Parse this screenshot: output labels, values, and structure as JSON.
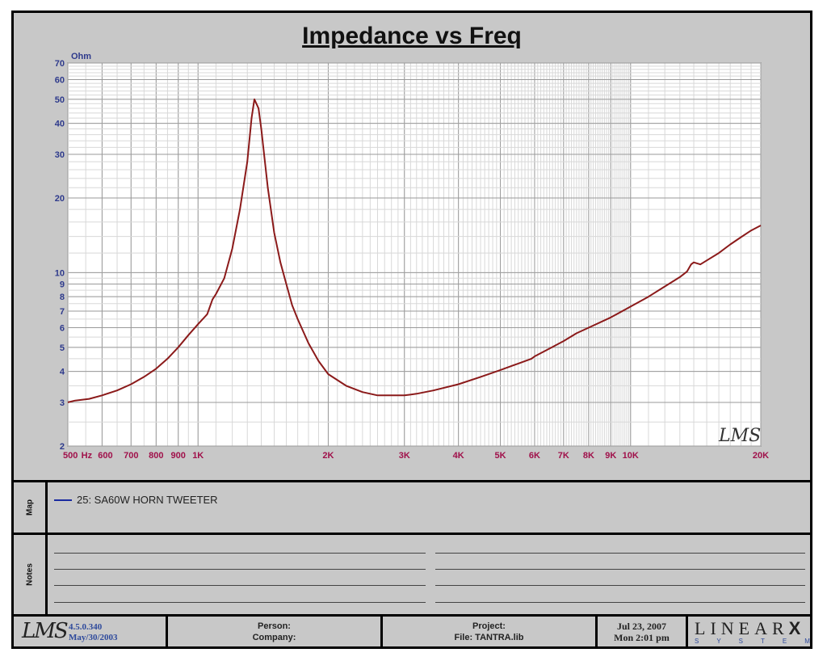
{
  "chart_data": {
    "type": "line",
    "title": "Impedance vs Freq",
    "ylabel": "Ohm",
    "xlabel": "Hz",
    "x_scale": "log",
    "y_scale": "log",
    "xlim": [
      500,
      20000
    ],
    "ylim": [
      2,
      70
    ],
    "grid": true,
    "x_ticks": [
      {
        "value": 500,
        "label": "500"
      },
      {
        "value": 600,
        "label": "600"
      },
      {
        "value": 700,
        "label": "700"
      },
      {
        "value": 800,
        "label": "800"
      },
      {
        "value": 900,
        "label": "900"
      },
      {
        "value": 1000,
        "label": "1K"
      },
      {
        "value": 2000,
        "label": "2K"
      },
      {
        "value": 3000,
        "label": "3K"
      },
      {
        "value": 4000,
        "label": "4K"
      },
      {
        "value": 5000,
        "label": "5K"
      },
      {
        "value": 6000,
        "label": "6K"
      },
      {
        "value": 7000,
        "label": "7K"
      },
      {
        "value": 8000,
        "label": "8K"
      },
      {
        "value": 9000,
        "label": "9K"
      },
      {
        "value": 10000,
        "label": "10K"
      },
      {
        "value": 20000,
        "label": "20K"
      }
    ],
    "y_ticks": [
      {
        "value": 2,
        "label": "2"
      },
      {
        "value": 3,
        "label": "3"
      },
      {
        "value": 4,
        "label": "4"
      },
      {
        "value": 5,
        "label": "5"
      },
      {
        "value": 6,
        "label": "6"
      },
      {
        "value": 7,
        "label": "7"
      },
      {
        "value": 8,
        "label": "8"
      },
      {
        "value": 9,
        "label": "9"
      },
      {
        "value": 10,
        "label": "10"
      },
      {
        "value": 20,
        "label": "20"
      },
      {
        "value": 30,
        "label": "30"
      },
      {
        "value": 40,
        "label": "40"
      },
      {
        "value": 50,
        "label": "50"
      },
      {
        "value": 60,
        "label": "60"
      },
      {
        "value": 70,
        "label": "70"
      }
    ],
    "series": [
      {
        "name": "25: SA60W HORN TWEETER",
        "color": "#8b1a1a",
        "x": [
          500,
          520,
          560,
          600,
          650,
          700,
          750,
          800,
          850,
          900,
          950,
          1000,
          1050,
          1080,
          1100,
          1150,
          1200,
          1250,
          1300,
          1330,
          1350,
          1380,
          1400,
          1450,
          1500,
          1550,
          1600,
          1650,
          1700,
          1800,
          1900,
          2000,
          2200,
          2400,
          2600,
          2800,
          3000,
          3200,
          3500,
          4000,
          4500,
          5000,
          5500,
          5900,
          6000,
          6500,
          7000,
          7500,
          8000,
          9000,
          10000,
          11000,
          12000,
          13000,
          13500,
          13800,
          14000,
          14500,
          15000,
          16000,
          17000,
          18000,
          19000,
          20000
        ],
        "y": [
          3.0,
          3.05,
          3.1,
          3.2,
          3.35,
          3.55,
          3.8,
          4.1,
          4.5,
          5.0,
          5.6,
          6.2,
          6.8,
          7.8,
          8.2,
          9.5,
          12.5,
          18.0,
          28.0,
          42.0,
          50.0,
          46.0,
          38.0,
          22.0,
          14.5,
          11.0,
          9.0,
          7.4,
          6.5,
          5.2,
          4.4,
          3.9,
          3.5,
          3.3,
          3.2,
          3.2,
          3.2,
          3.25,
          3.35,
          3.55,
          3.8,
          4.05,
          4.3,
          4.5,
          4.6,
          4.95,
          5.3,
          5.7,
          6.0,
          6.6,
          7.3,
          8.0,
          8.8,
          9.6,
          10.1,
          10.8,
          11.0,
          10.8,
          11.2,
          12.0,
          13.0,
          13.9,
          14.8,
          15.5
        ]
      }
    ],
    "legend": "bottom-panel"
  },
  "map": {
    "label": "Map",
    "legend_text": "25: SA60W HORN TWEETER",
    "legend_color": "#1a2aa0"
  },
  "notes": {
    "label": "Notes"
  },
  "footer": {
    "logo": "LMS",
    "version": "4.5.0.340",
    "version_date": "May/30/2003",
    "person_label": "Person:",
    "company_label": "Company:",
    "project_label": "Project:",
    "file_label": "File: TANTRA.lib",
    "date": "Jul 23, 2007",
    "time": "Mon  2:01 pm",
    "brand_main": "LINEAR",
    "brand_x": "X",
    "brand_sub": "SYSTEMS"
  },
  "watermark": "LMS",
  "colors": {
    "curve": "#8b1a1a",
    "y_tick": "#2e3a8c",
    "x_tick": "#a0104a",
    "panel_bg": "#c8c8c8",
    "plot_bg": "#ffffff"
  }
}
